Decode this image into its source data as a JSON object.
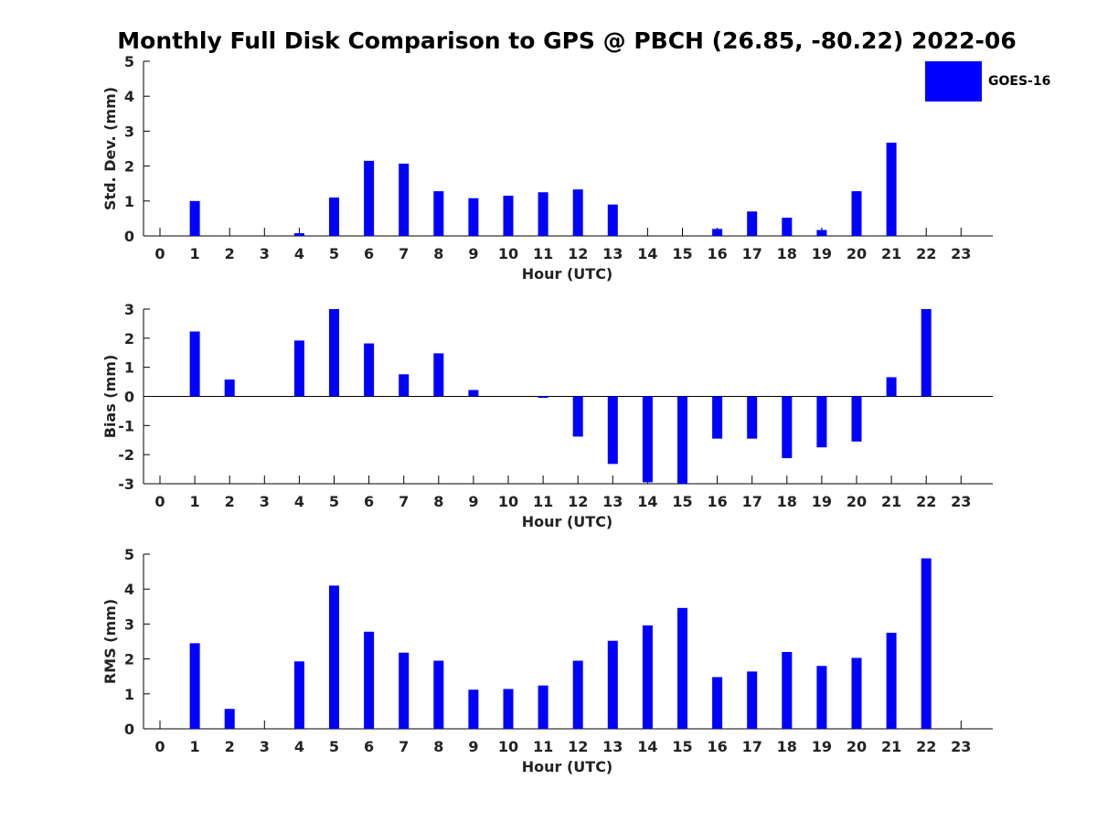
{
  "title": "Monthly Full Disk Comparison to GPS @ PBCH (26.85, -80.22) 2022-06",
  "legend": {
    "label": "GOES-16",
    "color": "#0000ff"
  },
  "bar_color": "#0000ff",
  "chart_data": [
    {
      "type": "bar",
      "series": [
        {
          "name": "GOES-16",
          "values": [
            null,
            1.0,
            null,
            null,
            0.08,
            1.1,
            2.15,
            2.07,
            1.28,
            1.08,
            1.15,
            1.25,
            1.33,
            0.9,
            null,
            null,
            0.2,
            0.7,
            0.52,
            0.17,
            1.28,
            2.67,
            null,
            null
          ]
        }
      ],
      "categories": [
        "0",
        "1",
        "2",
        "3",
        "4",
        "5",
        "6",
        "7",
        "8",
        "9",
        "10",
        "11",
        "12",
        "13",
        "14",
        "15",
        "16",
        "17",
        "18",
        "19",
        "20",
        "21",
        "22",
        "23"
      ],
      "xlabel": "Hour (UTC)",
      "ylabel": "Std. Dev. (mm)",
      "ylim": [
        0,
        5
      ],
      "yticks": [
        "0",
        "1",
        "2",
        "3",
        "4",
        "5"
      ]
    },
    {
      "type": "bar",
      "series": [
        {
          "name": "GOES-16",
          "values": [
            null,
            2.23,
            0.58,
            null,
            1.92,
            3.0,
            1.82,
            0.76,
            1.48,
            0.22,
            null,
            -0.05,
            -1.38,
            -2.32,
            -2.95,
            -3.0,
            -1.45,
            -1.45,
            -2.12,
            -1.75,
            -1.55,
            0.66,
            3.0,
            null
          ]
        }
      ],
      "categories": [
        "0",
        "1",
        "2",
        "3",
        "4",
        "5",
        "6",
        "7",
        "8",
        "9",
        "10",
        "11",
        "12",
        "13",
        "14",
        "15",
        "16",
        "17",
        "18",
        "19",
        "20",
        "21",
        "22",
        "23"
      ],
      "xlabel": "Hour (UTC)",
      "ylabel": "Bias (mm)",
      "ylim": [
        -3,
        3
      ],
      "yticks": [
        "-3",
        "-2",
        "-1",
        "0",
        "1",
        "2",
        "3"
      ]
    },
    {
      "type": "bar",
      "series": [
        {
          "name": "GOES-16",
          "values": [
            null,
            2.45,
            0.57,
            null,
            1.93,
            4.1,
            2.78,
            2.18,
            1.95,
            1.12,
            1.14,
            1.24,
            1.95,
            2.52,
            2.96,
            3.46,
            1.48,
            1.64,
            2.2,
            1.8,
            2.03,
            2.75,
            4.88,
            null
          ]
        }
      ],
      "categories": [
        "0",
        "1",
        "2",
        "3",
        "4",
        "5",
        "6",
        "7",
        "8",
        "9",
        "10",
        "11",
        "12",
        "13",
        "14",
        "15",
        "16",
        "17",
        "18",
        "19",
        "20",
        "21",
        "22",
        "23"
      ],
      "xlabel": "Hour (UTC)",
      "ylabel": "RMS (mm)",
      "ylim": [
        0,
        5
      ],
      "yticks": [
        "0",
        "1",
        "2",
        "3",
        "4",
        "5"
      ]
    }
  ]
}
